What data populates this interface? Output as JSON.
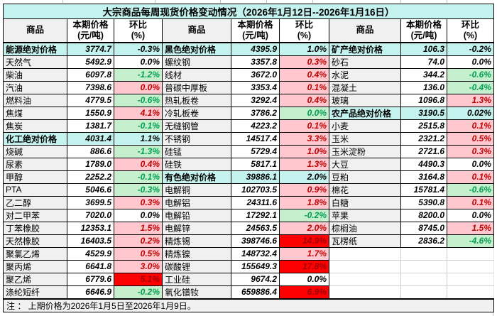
{
  "title": "大宗商品每周现货价格变动情况（2026年1月12日--2026年1月16日）",
  "note": "注 ： 上期价格为2026年1月5日至2026年1月9日。",
  "columns": {
    "name": "商品",
    "price_line1": "本期价格",
    "price_line2": "(元/吨)",
    "pct_line1": "环比",
    "pct_line2": "(%)"
  },
  "colors": {
    "cyan": "#c4f2ef",
    "grey": "#f0f0f0",
    "pink_bg": "#ffc7ce",
    "pink_text": "#c00000",
    "green_bg": "#c6efce",
    "green_text": "#00a050",
    "red_bg": "#ff0000",
    "red_text": "#9c0006"
  },
  "panes": [
    {
      "rows": [
        {
          "type": "sec",
          "name": "能源绝对价格",
          "price": "3774.7",
          "pct": "-0.3%"
        },
        {
          "type": "flat",
          "name": "天然气",
          "price": "5492.9",
          "pct": "0.0%"
        },
        {
          "type": "dn",
          "name": "柴油",
          "price": "6097.8",
          "pct": "-1.2%"
        },
        {
          "type": "up",
          "name": "汽油",
          "price": "7398.6",
          "pct": "0.0%"
        },
        {
          "type": "dn",
          "name": "燃料油",
          "price": "4779.5",
          "pct": "-0.6%"
        },
        {
          "type": "up",
          "name": "焦煤",
          "price": "1550.9",
          "pct": "4.1%"
        },
        {
          "type": "dn",
          "name": "焦炭",
          "price": "1381.7",
          "pct": "-0.1%"
        },
        {
          "type": "sec",
          "name": "化工绝对价格",
          "price": "4031.4",
          "pct": "1.1%"
        },
        {
          "type": "dn",
          "name": "烧碱",
          "price": "886.6",
          "pct": "-1.3%"
        },
        {
          "type": "up",
          "name": "尿素",
          "price": "1789.0",
          "pct": "0.4%"
        },
        {
          "type": "dn",
          "name": "甲醇",
          "price": "2252.2",
          "pct": "-0.1%"
        },
        {
          "type": "dn",
          "name": "PTA",
          "price": "5046.6",
          "pct": "-0.3%"
        },
        {
          "type": "up",
          "name": "乙二醇",
          "price": "3699.5",
          "pct": "0.3%"
        },
        {
          "type": "flat",
          "name": "对二甲苯",
          "price": "7020.0",
          "pct": "0.0%"
        },
        {
          "type": "up",
          "name": "丁苯橡胶",
          "price": "12353.1",
          "pct": "1.5%"
        },
        {
          "type": "up",
          "name": "天然橡胶",
          "price": "16403.5",
          "pct": "0.2%"
        },
        {
          "type": "up",
          "name": "聚氯乙烯",
          "price": "4529.9",
          "pct": "0.5%"
        },
        {
          "type": "up",
          "name": "聚丙烯",
          "price": "6641.8",
          "pct": "3.0%"
        },
        {
          "type": "hot",
          "name": "聚乙烯",
          "price": "6779.6",
          "pct": "5.1%"
        },
        {
          "type": "dn",
          "name": "涤纶短纤",
          "price": "6646.9",
          "pct": "-0.2%"
        }
      ]
    },
    {
      "rows": [
        {
          "type": "sec",
          "name": "黑色绝对价格",
          "price": "4395.9",
          "pct": "1.0%"
        },
        {
          "type": "up",
          "name": "螺纹钢",
          "price": "3357.8",
          "pct": "0.3%"
        },
        {
          "type": "up",
          "name": "线材",
          "price": "3672.0",
          "pct": "0.4%"
        },
        {
          "type": "up",
          "name": "普碳中厚板",
          "price": "3353.4",
          "pct": "0.1%"
        },
        {
          "type": "up",
          "name": "热轧板卷",
          "price": "3292.4",
          "pct": "0.4%"
        },
        {
          "type": "dn",
          "name": "冷轧板卷",
          "price": "3786.2",
          "pct": "0.0%"
        },
        {
          "type": "up",
          "name": "无缝钢管",
          "price": "4223.2",
          "pct": "0.1%"
        },
        {
          "type": "up",
          "name": "不锈钢",
          "price": "14517.4",
          "pct": "3.3%"
        },
        {
          "type": "up",
          "name": "硅锰",
          "price": "5729.4",
          "pct": "1.0%"
        },
        {
          "type": "up",
          "name": "硅铁",
          "price": "5817.1",
          "pct": "1.3%"
        },
        {
          "type": "sec",
          "name": "有色绝对价格",
          "price": "39886.1",
          "pct": "2.0%"
        },
        {
          "type": "up",
          "name": "电解铜",
          "price": "102703.5",
          "pct": "0.9%"
        },
        {
          "type": "up",
          "name": "电解铝",
          "price": "24311.6",
          "pct": "1.8%"
        },
        {
          "type": "dn",
          "name": "电解铅",
          "price": "17292.1",
          "pct": "-0.2%"
        },
        {
          "type": "up",
          "name": "电解锌",
          "price": "24563.5",
          "pct": "2.0%"
        },
        {
          "type": "hot",
          "name": "精炼锡",
          "price": "398746.6",
          "pct": "14.9%"
        },
        {
          "type": "up",
          "name": "精炼镍",
          "price": "148732.4",
          "pct": "1.7%"
        },
        {
          "type": "hot",
          "name": "碳酸锂",
          "price": "155649.3",
          "pct": "17.8%"
        },
        {
          "type": "flat",
          "name": "工业硅",
          "price": "9674.2",
          "pct": "0.0%"
        },
        {
          "type": "hot",
          "name": "氧化镨钕",
          "price": "659886.4",
          "pct": "6.9%"
        }
      ]
    },
    {
      "rows": [
        {
          "type": "sec",
          "name": "矿产绝对价格",
          "price": "106.3",
          "pct": "-0.2%"
        },
        {
          "type": "flat",
          "name": "砂石",
          "price": "74.0",
          "pct": "0.0%"
        },
        {
          "type": "dn",
          "name": "水泥",
          "price": "344.2",
          "pct": "-0.6%"
        },
        {
          "type": "dn",
          "name": "混凝土",
          "price": "136.0",
          "pct": "-0.4%"
        },
        {
          "type": "up",
          "name": "玻璃",
          "price": "1096.8",
          "pct": "1.3%"
        },
        {
          "type": "sec",
          "name": "农产品绝对价格",
          "price": "3190.5",
          "pct": "0.02%"
        },
        {
          "type": "up",
          "name": "小麦",
          "price": "2515.8",
          "pct": "0.1%"
        },
        {
          "type": "up",
          "name": "玉米",
          "price": "2321.2",
          "pct": "0.5%"
        },
        {
          "type": "up",
          "name": "玉米淀粉",
          "price": "2721.6",
          "pct": "0.3%"
        },
        {
          "type": "flat",
          "name": "大豆",
          "price": "4490.3",
          "pct": "0.0%"
        },
        {
          "type": "up",
          "name": "豆粕",
          "price": "3164.8",
          "pct": "0.1%"
        },
        {
          "type": "dn",
          "name": "棉花",
          "price": "15781.4",
          "pct": "-0.6%"
        },
        {
          "type": "up",
          "name": "白糖",
          "price": "5390.8",
          "pct": "0.1%"
        },
        {
          "type": "flat",
          "name": "苹果",
          "price": "8200.0",
          "pct": "0.0%"
        },
        {
          "type": "up",
          "name": "棕榈油",
          "price": "8745.0",
          "pct": "1.5%"
        },
        {
          "type": "dn",
          "name": "瓦楞纸",
          "price": "2836.2",
          "pct": "-4.6%"
        },
        {
          "type": "empty"
        },
        {
          "type": "empty"
        },
        {
          "type": "empty"
        },
        {
          "type": "empty"
        }
      ]
    }
  ]
}
